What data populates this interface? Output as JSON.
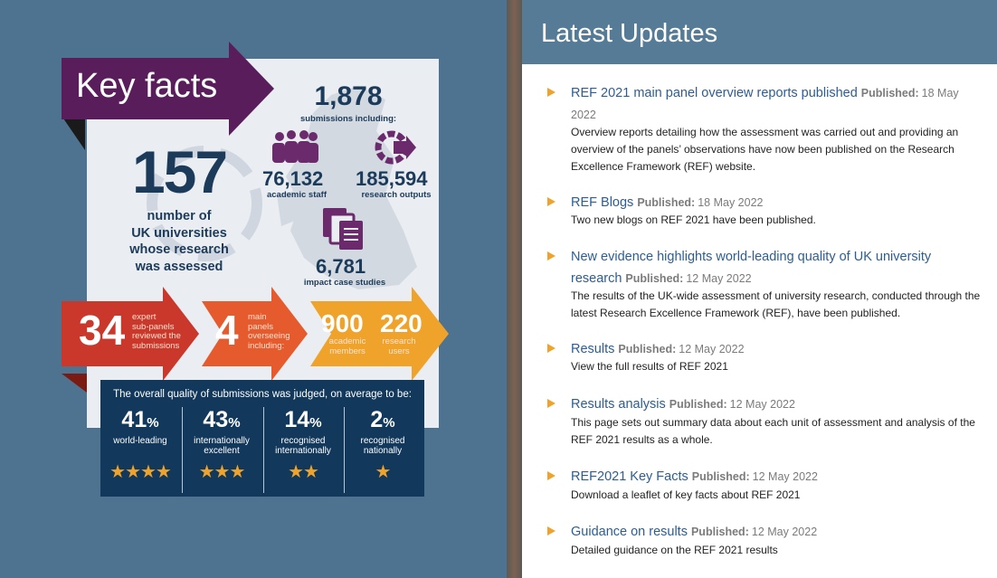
{
  "infographic": {
    "heading": "Key facts",
    "submissions": {
      "value": "1,878",
      "label": "submissions including:"
    },
    "universities": {
      "value": "157",
      "label_lines": [
        "number of",
        "UK universities",
        "whose research",
        "was assessed"
      ]
    },
    "academic_staff": {
      "value": "76,132",
      "label": "academic staff"
    },
    "research_outputs": {
      "value": "185,594",
      "label": "research outputs"
    },
    "impact_case_studies": {
      "value": "6,781",
      "label": "impact case studies"
    },
    "sub_panels": {
      "value": "34",
      "label_lines": [
        "expert",
        "sub-panels",
        "reviewed the",
        "submissions"
      ]
    },
    "main_panels": {
      "value": "4",
      "label_lines": [
        "main",
        "panels",
        "overseeing",
        "including:"
      ]
    },
    "academic_members": {
      "value": "900",
      "label_lines": [
        "academic",
        "members"
      ]
    },
    "research_users": {
      "value": "220",
      "label_lines": [
        "research",
        "users"
      ]
    },
    "quality_heading": "The overall quality of submissions was judged, on average to be:",
    "quality": [
      {
        "value": "41",
        "unit": "%",
        "label_lines": [
          "world-leading",
          ""
        ],
        "stars": "★★★★"
      },
      {
        "value": "43",
        "unit": "%",
        "label_lines": [
          "internationally",
          "excellent"
        ],
        "stars": "★★★"
      },
      {
        "value": "14",
        "unit": "%",
        "label_lines": [
          "recognised",
          "internationally"
        ],
        "stars": "★★"
      },
      {
        "value": "2",
        "unit": "%",
        "label_lines": [
          "recognised",
          "nationally"
        ],
        "stars": "★"
      }
    ],
    "colors": {
      "purple": "#5a1d5c",
      "red": "#c9382a",
      "orange_red": "#e55b2e",
      "orange": "#f0a32b",
      "navy": "#12385b"
    }
  },
  "updates": {
    "title": "Latest Updates",
    "items": [
      {
        "title": "REF 2021 main panel overview reports published",
        "published": "Published:",
        "date": "18 May 2022",
        "desc": "Overview reports detailing how the assessment was carried out and providing an overview of the panels’ observations have now been published on the Research Excellence Framework (REF) website."
      },
      {
        "title": "REF Blogs",
        "published": "Published:",
        "date": "18 May 2022",
        "desc": "Two new blogs on REF 2021 have been published."
      },
      {
        "title": "New evidence highlights world-leading quality of UK university research",
        "published": "Published:",
        "date": "12 May 2022",
        "desc": "The results of the UK-wide assessment of university research, conducted through the latest Research Excellence Framework (REF), have been published."
      },
      {
        "title": "Results",
        "published": "Published:",
        "date": "12 May 2022",
        "desc": "View the full results of REF 2021"
      },
      {
        "title": "Results analysis",
        "published": "Published:",
        "date": "12 May 2022",
        "desc": "This page sets out summary data about each unit of assessment and analysis of the REF 2021 results as a whole."
      },
      {
        "title": "REF2021 Key Facts",
        "published": "Published:",
        "date": "12 May 2022",
        "desc": "Download a leaflet of key facts about REF 2021"
      },
      {
        "title": "Guidance on results",
        "published": "Published:",
        "date": "12 May 2022",
        "desc": "Detailed guidance on the REF 2021 results"
      }
    ]
  }
}
